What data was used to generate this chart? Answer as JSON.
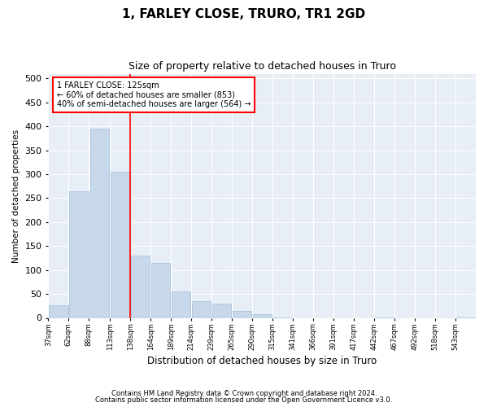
{
  "title": "1, FARLEY CLOSE, TRURO, TR1 2GD",
  "subtitle": "Size of property relative to detached houses in Truro",
  "xlabel": "Distribution of detached houses by size in Truro",
  "ylabel": "Number of detached properties",
  "footer_line1": "Contains HM Land Registry data © Crown copyright and database right 2024.",
  "footer_line2": "Contains public sector information licensed under the Open Government Licence v3.0.",
  "annotation_title": "1 FARLEY CLOSE: 125sqm",
  "annotation_line2": "← 60% of detached houses are smaller (853)",
  "annotation_line3": "40% of semi-detached houses are larger (564) →",
  "bar_color": "#c8d8eb",
  "bar_edge_color": "#aac4de",
  "vline_color": "red",
  "vline_x": 125,
  "background_color": "#e8eef6",
  "categories": [
    "37sqm",
    "62sqm",
    "88sqm",
    "113sqm",
    "138sqm",
    "164sqm",
    "189sqm",
    "214sqm",
    "239sqm",
    "265sqm",
    "290sqm",
    "315sqm",
    "341sqm",
    "366sqm",
    "391sqm",
    "417sqm",
    "442sqm",
    "467sqm",
    "492sqm",
    "518sqm",
    "543sqm"
  ],
  "bin_edges": [
    24.5,
    49.5,
    74.5,
    100.5,
    125.5,
    150.5,
    175.5,
    200.5,
    225.5,
    250.5,
    275.5,
    300.5,
    325.5,
    350.5,
    375.5,
    400.5,
    425.5,
    450.5,
    475.5,
    500.5,
    525.5,
    550.5
  ],
  "values": [
    27,
    265,
    395,
    305,
    130,
    115,
    55,
    35,
    30,
    15,
    8,
    1,
    0,
    0,
    0,
    0,
    1,
    0,
    0,
    0,
    1
  ],
  "ylim": [
    0,
    510
  ],
  "yticks": [
    0,
    50,
    100,
    150,
    200,
    250,
    300,
    350,
    400,
    450,
    500
  ]
}
